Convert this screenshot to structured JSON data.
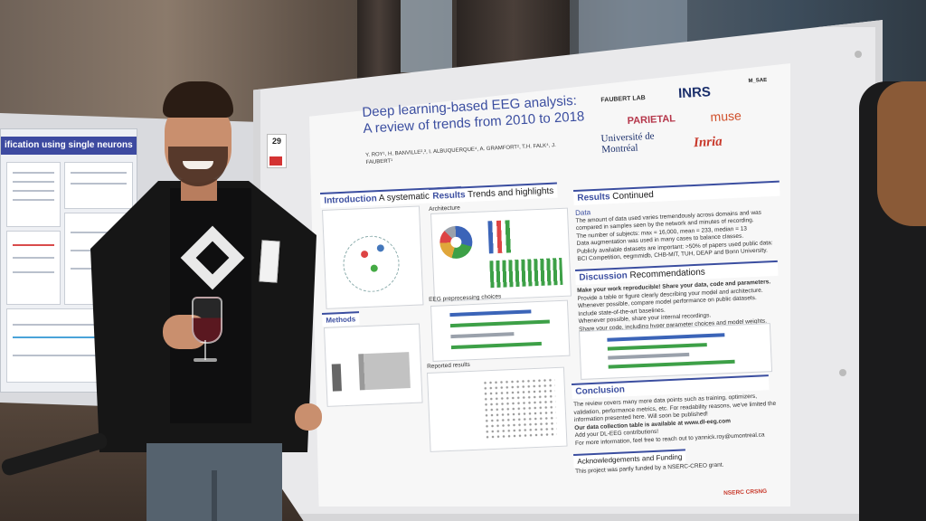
{
  "left_poster": {
    "title": "ification using single neurons"
  },
  "board": {
    "number": "29"
  },
  "poster": {
    "title_line1": "Deep learning-based EEG analysis:",
    "title_line2": "A review of trends from 2010 to 2018",
    "authors": "Y. ROY¹, H. BANVILLE²,³, I. ALBUQUERQUE⁴, A. GRAMFORT², T.H. FALK⁴, J. FAUBERT¹",
    "logos": [
      "FAUBERT LAB",
      "INRS",
      "M_SAE",
      "PARIETAL",
      "muse",
      "Université de Montréal",
      "Inria"
    ],
    "sections": {
      "introduction": {
        "head": "Introduction",
        "sub": "A systematic review"
      },
      "results": {
        "head": "Results",
        "sub": "Trends and highlights",
        "architecture": "Architecture",
        "eeg_preproc": "EEG preprocessing choices",
        "reported": "Reported results"
      },
      "results_continued": {
        "head": "Results",
        "sub": "Continued",
        "data_label": "Data",
        "bullets": [
          "The amount of data used varies tremendously across domains and was",
          "compared in samples seen by the network and minutes of recording.",
          "The number of subjects: max = 16,000, mean = 233, median = 13",
          "Data augmentation was used in many cases to balance classes.",
          "Publicly available datasets are important: >50% of papers used public data:",
          "BCI Competition, eegmmidb, CHB-MIT, TUH, DEAP and Bonn University."
        ]
      },
      "discussion": {
        "head": "Discussion",
        "sub": "Recommendations",
        "lead": "Make your work reproducible! Share your data, code and parameters.",
        "bullets": [
          "Provide a table or figure clearly describing your model and architecture.",
          "Whenever possible, compare model performance on public datasets.",
          "Include state-of-the-art baselines.",
          "Whenever possible, share your internal recordings.",
          "Share your code, including hyper parameter choices and model weights."
        ]
      },
      "methods": {
        "head": "Methods"
      },
      "conclusion": {
        "head": "Conclusion",
        "lines": [
          "The review covers many more data points such as training, optimizers,",
          "validation, performance metrics, etc. For readability reasons, we've limited the",
          "information presented here. Will soon be published!",
          "Our data collection table is available at www.dl-eeg.com",
          "Add your DL-EEG contributions!",
          "For more information, feel free to reach out to yannick.roy@umontreal.ca"
        ]
      },
      "acknowledgements": {
        "head": "Acknowledgements and Funding",
        "text": "This project was partly funded by a NSERC-CREO grant.",
        "nserc": "NSERC CRSNG"
      }
    }
  },
  "colors": {
    "poster_blue": "#3b4ea0",
    "bar_green": "#3da047",
    "bar_blue": "#3b64b8",
    "bar_gray": "#9aa1ab"
  }
}
